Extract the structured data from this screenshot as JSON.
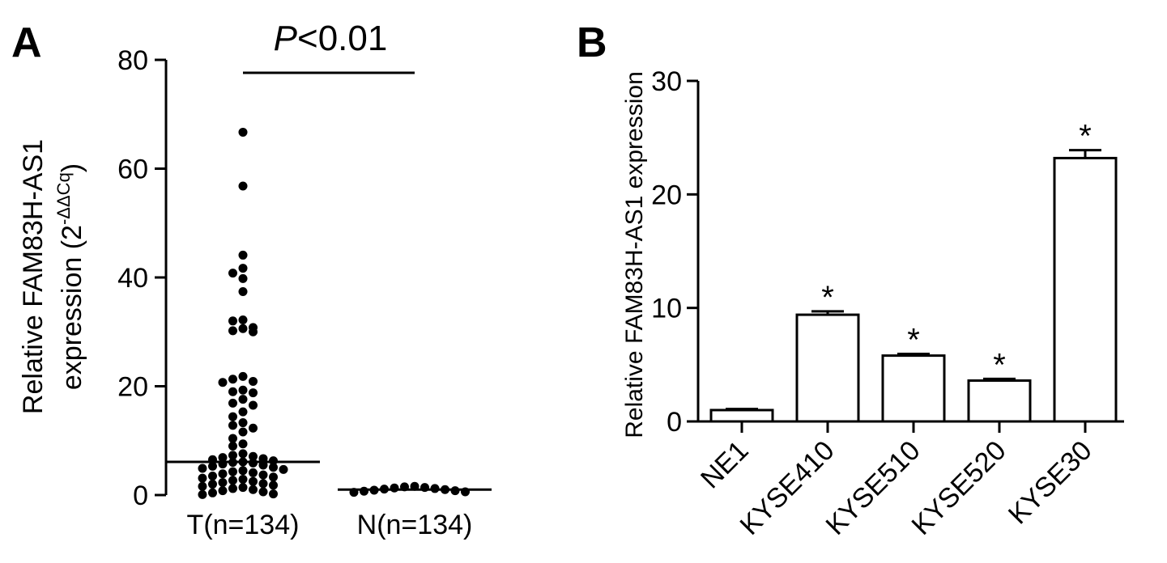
{
  "panels": {
    "A": {
      "panel_label": "A",
      "annotation": {
        "italic": "P",
        "rest": "<0.01"
      },
      "ylabel": {
        "line1": "Relative FAM83H-AS1",
        "line2_prefix": "expression (2",
        "superscript": "-ΔΔCq",
        "line2_suffix": ")"
      }
    },
    "B": {
      "panel_label": "B",
      "ylabel": "Relative FAM83H-AS1 expression",
      "significance_marker": "*"
    }
  },
  "chart_data": [
    {
      "type": "scatter",
      "panel": "A",
      "title": "",
      "xlabel": "",
      "ylabel": "Relative FAM83H-AS1 expression (2-ΔΔCq)",
      "categories": [
        "T(n=134)",
        "N(n=134)"
      ],
      "ylim": [
        0,
        80
      ],
      "yticks": [
        0,
        20,
        40,
        60,
        80
      ],
      "grid": false,
      "annotation": "P<0.01",
      "groups": [
        {
          "name": "T(n=134)",
          "median": 6.1,
          "points": [
            66.7,
            56.8,
            44.1,
            41.7,
            40.8,
            39.8,
            37.4,
            32.2,
            32.0,
            30.8,
            30.6,
            30.2,
            30.0,
            21.8,
            21.3,
            20.9,
            20.7,
            19.3,
            19.0,
            18.8,
            17.6,
            16.9,
            16.5,
            15.3,
            14.4,
            13.3,
            12.8,
            12.3,
            11.6,
            10.4,
            9.4,
            9.0,
            7.6,
            7.3,
            7.1,
            6.9,
            6.7,
            6.5,
            6.3,
            6.1,
            6.0,
            5.9,
            5.7,
            5.5,
            5.3,
            5.1,
            4.9,
            4.7,
            4.5,
            4.3,
            4.1,
            3.9,
            3.7,
            3.5,
            3.3,
            3.1,
            2.9,
            2.7,
            2.5,
            2.3,
            2.1,
            2.0,
            1.8,
            1.6,
            1.4,
            1.2,
            1.0,
            0.8,
            0.6,
            0.4,
            0.2,
            0.1
          ]
        },
        {
          "name": "N(n=134)",
          "median": 1.0,
          "points": [
            1.6,
            1.5,
            1.4,
            1.3,
            1.2,
            1.1,
            1.0,
            0.9,
            0.8,
            0.7,
            0.6,
            0.5
          ]
        }
      ]
    },
    {
      "type": "bar",
      "panel": "B",
      "title": "",
      "xlabel": "",
      "ylabel": "Relative FAM83H-AS1 expression",
      "categories": [
        "NE1",
        "KYSE410",
        "KYSE510",
        "KYSE520",
        "KYSE30"
      ],
      "values": [
        1.0,
        9.4,
        5.8,
        3.6,
        23.2
      ],
      "errors": [
        0.1,
        0.3,
        0.15,
        0.15,
        0.7
      ],
      "significant": [
        false,
        true,
        true,
        true,
        true
      ],
      "ylim": [
        0,
        30
      ],
      "yticks": [
        0,
        10,
        20,
        30
      ],
      "grid": false
    }
  ]
}
